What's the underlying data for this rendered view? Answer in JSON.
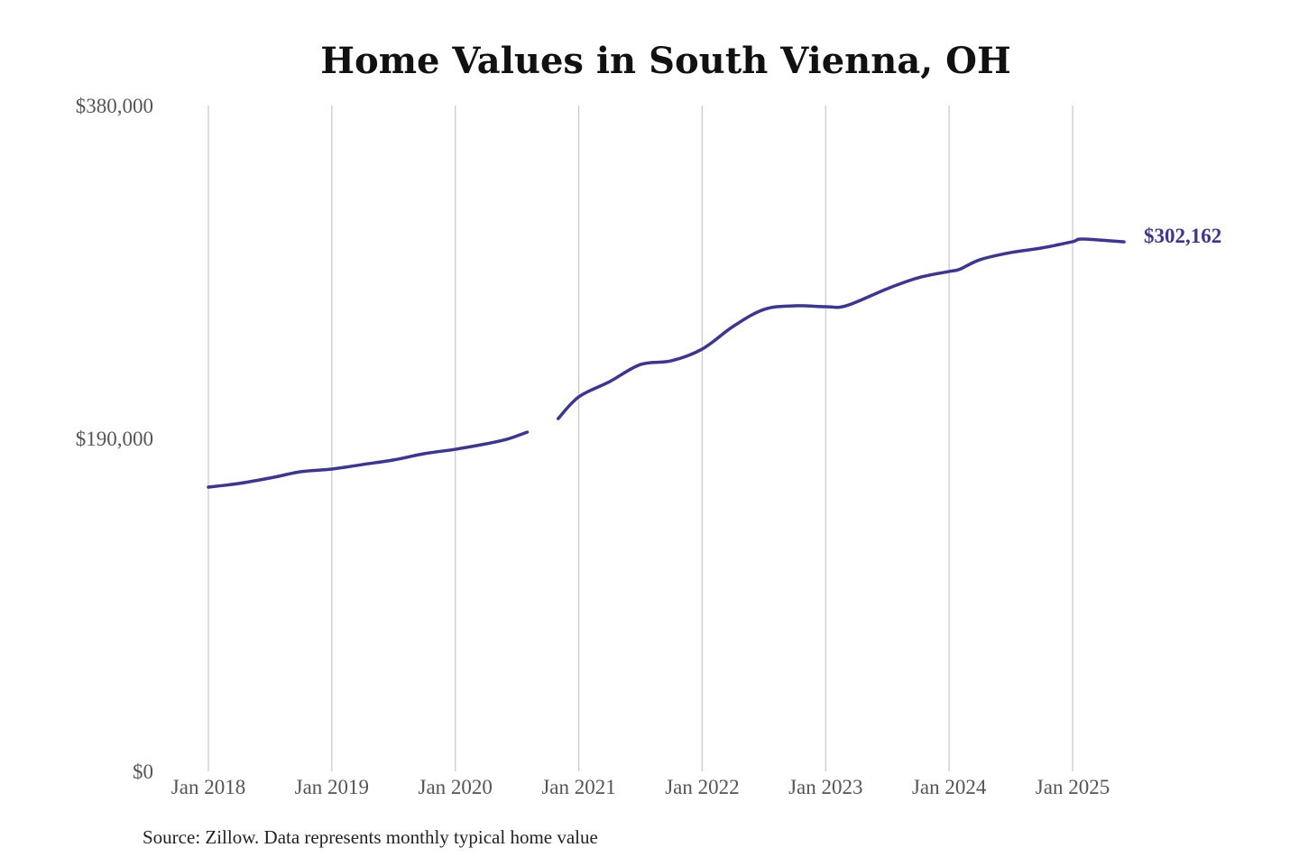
{
  "chart_data": {
    "type": "line",
    "title": "Home Values in South Vienna, OH",
    "xlabel": "",
    "ylabel": "",
    "ylim": [
      0,
      380000
    ],
    "y_ticks": [
      "$380,000",
      "$190,000",
      "$0"
    ],
    "y_tick_values": [
      380000,
      190000,
      0
    ],
    "x_ticks": [
      "Jan 2018",
      "Jan 2019",
      "Jan 2020",
      "Jan 2021",
      "Jan 2022",
      "Jan 2023",
      "Jan 2024",
      "Jan 2025"
    ],
    "x_tick_values": [
      "2018-01",
      "2019-01",
      "2020-01",
      "2021-01",
      "2022-01",
      "2023-01",
      "2024-01",
      "2025-01"
    ],
    "grid": "vertical",
    "line_color": "#3a3596",
    "series": [
      {
        "x": [
          "2018-01",
          "2018-04",
          "2018-07",
          "2018-10",
          "2019-01",
          "2019-04",
          "2019-07",
          "2019-10",
          "2020-01",
          "2020-04",
          "2020-06",
          "2020-08",
          "2020-10",
          "2020-11",
          "2021-01",
          "2021-04",
          "2021-07",
          "2021-10",
          "2022-01",
          "2022-04",
          "2022-07",
          "2022-10",
          "2023-01",
          "2023-03",
          "2023-07",
          "2023-10",
          "2024-01",
          "2024-02",
          "2024-04",
          "2024-07",
          "2024-10",
          "2025-01",
          "2025-02",
          "2025-06"
        ],
        "values": [
          162200,
          164300,
          167400,
          171000,
          172500,
          175100,
          177700,
          181300,
          183800,
          186900,
          189500,
          193600,
          null,
          201300,
          213700,
          222400,
          232200,
          234300,
          241000,
          253900,
          263600,
          265700,
          265200,
          265700,
          275500,
          281700,
          285300,
          286500,
          292000,
          296100,
          298700,
          302300,
          303800,
          302162
        ]
      }
    ],
    "end_label": "$302,162"
  },
  "source": "Source: Zillow. Data represents monthly typical home value"
}
